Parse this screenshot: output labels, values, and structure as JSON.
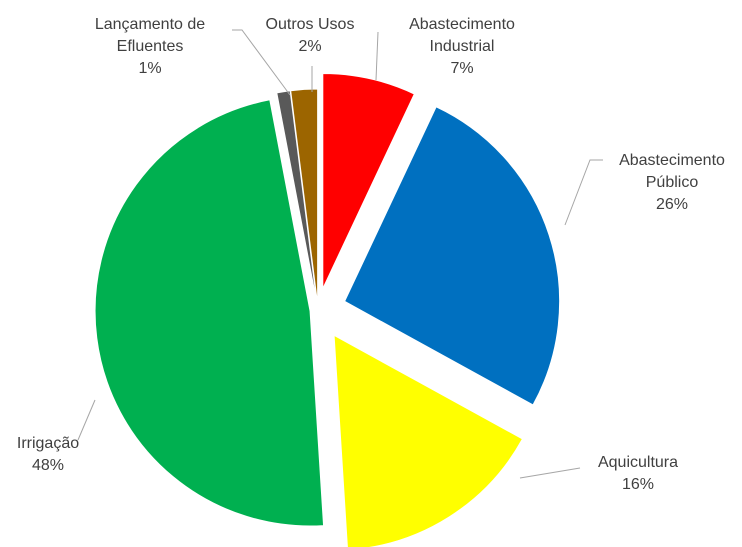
{
  "chart_data": {
    "type": "pie",
    "categories": [
      "Abastecimento Industrial",
      "Abastecimento Público",
      "Aquicultura",
      "Irrigação",
      "Lançamento de Efluentes",
      "Outros Usos"
    ],
    "values": [
      7,
      26,
      16,
      48,
      1,
      2
    ],
    "value_labels": [
      "7%",
      "26%",
      "16%",
      "48%",
      "1%",
      "2%"
    ],
    "colors": [
      "#ff0000",
      "#0070c0",
      "#ffff00",
      "#00b050",
      "#595959",
      "#9c6500"
    ]
  }
}
